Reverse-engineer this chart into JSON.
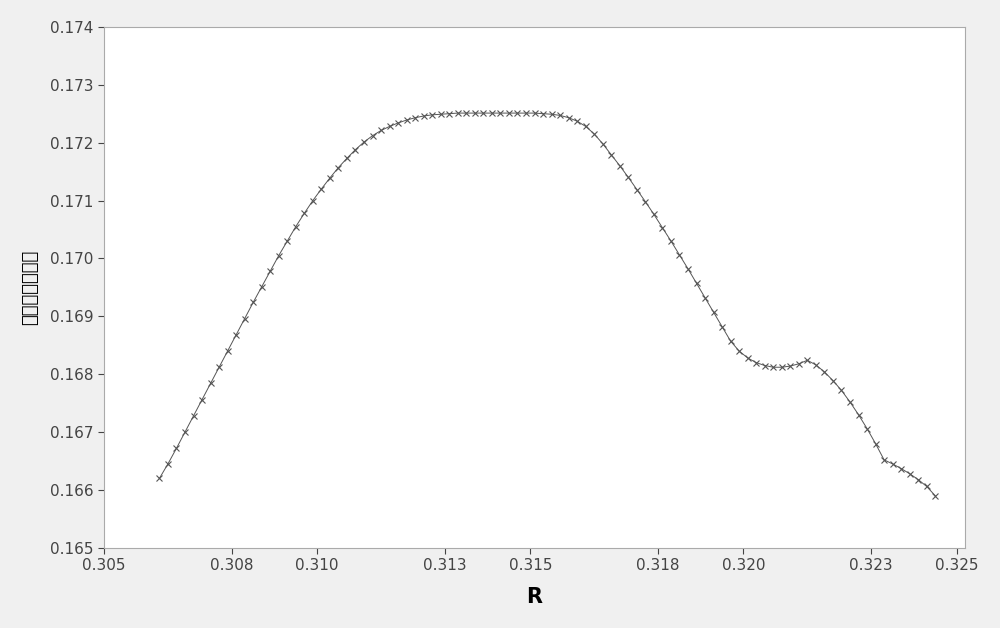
{
  "x_values": [
    0.3063,
    0.3065,
    0.3067,
    0.3069,
    0.3071,
    0.3073,
    0.3075,
    0.3077,
    0.3079,
    0.3081,
    0.3083,
    0.3085,
    0.3087,
    0.3089,
    0.3091,
    0.3093,
    0.3095,
    0.3097,
    0.3099,
    0.3101,
    0.3103,
    0.3105,
    0.3107,
    0.3109,
    0.3111,
    0.3113,
    0.3115,
    0.3117,
    0.3119,
    0.3121,
    0.3123,
    0.3125,
    0.3127,
    0.3129,
    0.3131,
    0.3133,
    0.3135,
    0.3137,
    0.3139,
    0.3141,
    0.3143,
    0.3145,
    0.3147,
    0.3149,
    0.3151,
    0.3153,
    0.3155,
    0.3157,
    0.3159,
    0.3161,
    0.3163,
    0.3165,
    0.3167,
    0.3169,
    0.3171,
    0.3173,
    0.3175,
    0.3177,
    0.3179,
    0.3181,
    0.3183,
    0.3185,
    0.3187,
    0.3189,
    0.3191,
    0.3193,
    0.3195,
    0.3197,
    0.3199,
    0.3201,
    0.3203,
    0.3205,
    0.3207,
    0.3209,
    0.3211,
    0.3213,
    0.3215,
    0.3217,
    0.3219,
    0.3221,
    0.3223,
    0.3225,
    0.3227,
    0.3229,
    0.3231,
    0.3233,
    0.3235,
    0.3237,
    0.3239,
    0.3241,
    0.3243,
    0.3245
  ],
  "y_values": [
    0.1662,
    0.16645,
    0.16672,
    0.167,
    0.16728,
    0.16756,
    0.16784,
    0.16812,
    0.1684,
    0.16868,
    0.16896,
    0.16924,
    0.16951,
    0.16978,
    0.17005,
    0.1703,
    0.17055,
    0.17078,
    0.171,
    0.1712,
    0.17139,
    0.17157,
    0.17173,
    0.17188,
    0.17201,
    0.17212,
    0.17221,
    0.17228,
    0.17234,
    0.17239,
    0.17243,
    0.17246,
    0.17248,
    0.17249,
    0.1725,
    0.17251,
    0.17251,
    0.17251,
    0.17251,
    0.17251,
    0.17251,
    0.17251,
    0.17251,
    0.17251,
    0.17251,
    0.1725,
    0.17249,
    0.17247,
    0.17243,
    0.17237,
    0.17228,
    0.17215,
    0.17198,
    0.17179,
    0.1716,
    0.1714,
    0.17119,
    0.17098,
    0.17076,
    0.17053,
    0.1703,
    0.17006,
    0.16982,
    0.16957,
    0.16932,
    0.16907,
    0.16882,
    0.16857,
    0.1684,
    0.16828,
    0.1682,
    0.16815,
    0.16812,
    0.16812,
    0.16814,
    0.16818,
    0.16824,
    0.16816,
    0.16804,
    0.16789,
    0.16772,
    0.16752,
    0.1673,
    0.16706,
    0.1668,
    0.16652,
    0.16645,
    0.16637,
    0.16628,
    0.16618,
    0.16606,
    0.1659
  ],
  "xlim": [
    0.305,
    0.3252
  ],
  "ylim": [
    0.165,
    0.174
  ],
  "xticks": [
    0.305,
    0.308,
    0.31,
    0.313,
    0.315,
    0.318,
    0.32,
    0.323,
    0.325
  ],
  "yticks": [
    0.165,
    0.166,
    0.167,
    0.168,
    0.169,
    0.17,
    0.171,
    0.172,
    0.173,
    0.174
  ],
  "xlabel": "R",
  "ylabel": "绝对禁带相对值",
  "line_color": "#555555",
  "marker": "x",
  "marker_size": 4,
  "marker_color": "#555555",
  "line_width": 0.7,
  "background_color": "#f0f0f0",
  "plot_bg_color": "#ffffff",
  "xlabel_fontsize": 15,
  "ylabel_fontsize": 13,
  "tick_fontsize": 11,
  "xlabel_fontweight": "bold"
}
